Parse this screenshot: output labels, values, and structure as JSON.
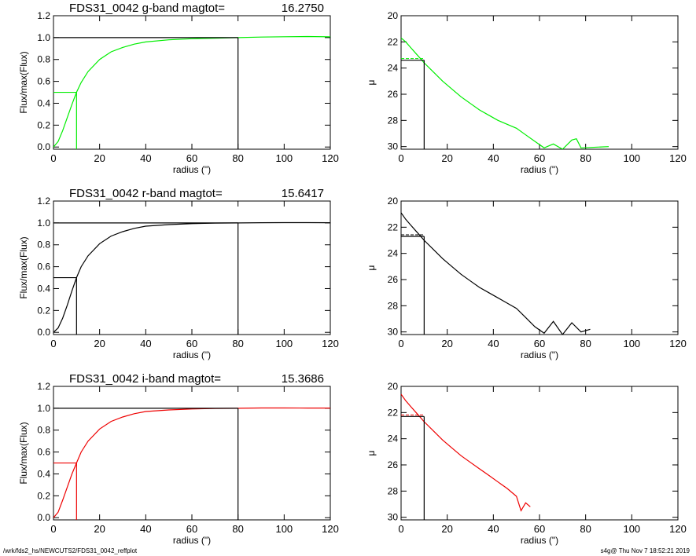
{
  "footer": {
    "path": "/wrk/fds2_hs/NEWCUTS2/FDS31_0042_reffplot",
    "stamp": "s4g@  Thu Nov  7 18:52:21 2019"
  },
  "chart_data": [
    {
      "type": "line",
      "panel": "g-growth",
      "color": "#00ee00",
      "title_name": "FDS31_0042 g-band  magtot=",
      "title_value": "16.2750",
      "xlabel": "radius (\")",
      "ylabel": "Flux/max(Flux)",
      "xlim": [
        0,
        120
      ],
      "ylim": [
        -0.02,
        1.2
      ],
      "xticks": [
        0,
        20,
        40,
        60,
        80,
        100,
        120
      ],
      "yticks": [
        0.0,
        0.2,
        0.4,
        0.6,
        0.8,
        1.0,
        1.2
      ],
      "ytick_labels": [
        "0.0",
        "0.2",
        "0.4",
        "0.6",
        "0.8",
        "1.0",
        "1.2"
      ],
      "x": [
        0,
        2,
        4,
        6,
        8,
        10,
        12,
        15,
        20,
        25,
        30,
        35,
        40,
        50,
        60,
        70,
        80,
        90,
        100,
        110,
        120
      ],
      "y": [
        0,
        0.05,
        0.15,
        0.27,
        0.39,
        0.5,
        0.59,
        0.69,
        0.8,
        0.87,
        0.91,
        0.94,
        0.96,
        0.98,
        0.99,
        0.995,
        1.0,
        1.005,
        1.008,
        1.01,
        1.007
      ],
      "reference_lines": {
        "r_half": 10,
        "half_level": 0.5,
        "r_total": 80,
        "total_level": 1.0
      }
    },
    {
      "type": "line",
      "panel": "g-profile",
      "color": "#00ee00",
      "xlabel": "radius (\")",
      "ylabel": "μ",
      "xlim": [
        0,
        120
      ],
      "ylim": [
        30.2,
        20
      ],
      "xticks": [
        0,
        20,
        40,
        60,
        80,
        100,
        120
      ],
      "yticks": [
        20,
        22,
        24,
        26,
        28,
        30
      ],
      "x": [
        0,
        2,
        4,
        6,
        8,
        10,
        14,
        18,
        22,
        26,
        30,
        34,
        38,
        42,
        46,
        50,
        54,
        58,
        62,
        66,
        70,
        74,
        76,
        78,
        90
      ],
      "y": [
        21.7,
        22,
        22.4,
        22.8,
        23.2,
        23.6,
        24.3,
        25,
        25.6,
        26.2,
        26.7,
        27.2,
        27.6,
        28,
        28.3,
        28.6,
        29.1,
        29.6,
        30.1,
        29.8,
        30.2,
        29.5,
        29.4,
        30.1,
        30.0
      ],
      "reference_lines": {
        "r_half": 10,
        "mu_half": 23.4
      }
    },
    {
      "type": "line",
      "panel": "r-growth",
      "color": "#000000",
      "title_name": "FDS31_0042 r-band  magtot=",
      "title_value": "15.6417",
      "xlabel": "radius (\")",
      "ylabel": "Flux/max(Flux)",
      "xlim": [
        0,
        120
      ],
      "ylim": [
        -0.02,
        1.2
      ],
      "xticks": [
        0,
        20,
        40,
        60,
        80,
        100,
        120
      ],
      "yticks": [
        0.0,
        0.2,
        0.4,
        0.6,
        0.8,
        1.0,
        1.2
      ],
      "ytick_labels": [
        "0.0",
        "0.2",
        "0.4",
        "0.6",
        "0.8",
        "1.0",
        "1.2"
      ],
      "x": [
        0,
        2,
        4,
        6,
        8,
        10,
        12,
        15,
        20,
        25,
        30,
        35,
        40,
        50,
        60,
        70,
        80,
        90,
        100,
        110,
        120
      ],
      "y": [
        0,
        0.04,
        0.13,
        0.25,
        0.38,
        0.5,
        0.6,
        0.7,
        0.81,
        0.88,
        0.92,
        0.95,
        0.97,
        0.985,
        0.993,
        0.998,
        1.0,
        1.002,
        1.003,
        1.003,
        1.002
      ],
      "reference_lines": {
        "r_half": 10,
        "half_level": 0.5,
        "r_total": 80,
        "total_level": 1.0
      }
    },
    {
      "type": "line",
      "panel": "r-profile",
      "color": "#000000",
      "xlabel": "radius (\")",
      "ylabel": "μ",
      "xlim": [
        0,
        120
      ],
      "ylim": [
        30.2,
        20
      ],
      "xticks": [
        0,
        20,
        40,
        60,
        80,
        100,
        120
      ],
      "yticks": [
        20,
        22,
        24,
        26,
        28,
        30
      ],
      "x": [
        0,
        2,
        4,
        6,
        8,
        10,
        14,
        18,
        22,
        26,
        30,
        34,
        38,
        42,
        46,
        50,
        54,
        58,
        62,
        66,
        70,
        74,
        78,
        82
      ],
      "y": [
        20.9,
        21.4,
        21.8,
        22.2,
        22.6,
        23,
        23.7,
        24.4,
        25,
        25.6,
        26.1,
        26.6,
        27,
        27.4,
        27.8,
        28.2,
        28.9,
        29.6,
        30.1,
        29.2,
        30.2,
        29.3,
        30.0,
        29.8
      ],
      "reference_lines": {
        "r_half": 10,
        "mu_half": 22.7
      }
    },
    {
      "type": "line",
      "panel": "i-growth",
      "color": "#ee0000",
      "title_name": "FDS31_0042 i-band  magtot=",
      "title_value": "15.3686",
      "xlabel": "radius (\")",
      "ylabel": "Flux/max(Flux)",
      "xlim": [
        0,
        120
      ],
      "ylim": [
        -0.02,
        1.2
      ],
      "xticks": [
        0,
        20,
        40,
        60,
        80,
        100,
        120
      ],
      "yticks": [
        0.0,
        0.2,
        0.4,
        0.6,
        0.8,
        1.0,
        1.2
      ],
      "ytick_labels": [
        "0.0",
        "0.2",
        "0.4",
        "0.6",
        "0.8",
        "1.0",
        "1.2"
      ],
      "x": [
        0,
        2,
        4,
        6,
        8,
        10,
        12,
        15,
        20,
        25,
        30,
        35,
        40,
        50,
        60,
        70,
        80,
        90,
        100,
        110,
        120
      ],
      "y": [
        0,
        0.05,
        0.16,
        0.28,
        0.4,
        0.5,
        0.6,
        0.7,
        0.81,
        0.88,
        0.92,
        0.95,
        0.97,
        0.985,
        0.993,
        0.998,
        1.0,
        1.003,
        1.003,
        1.002,
        1.002
      ],
      "reference_lines": {
        "r_half": 10,
        "half_level": 0.5,
        "r_total": 80,
        "total_level": 1.0
      }
    },
    {
      "type": "line",
      "panel": "i-profile",
      "color": "#ee0000",
      "xlabel": "radius (\")",
      "ylabel": "μ",
      "xlim": [
        0,
        120
      ],
      "ylim": [
        30.2,
        20
      ],
      "xticks": [
        0,
        20,
        40,
        60,
        80,
        100,
        120
      ],
      "yticks": [
        20,
        22,
        24,
        26,
        28,
        30
      ],
      "x": [
        0,
        2,
        4,
        6,
        8,
        10,
        14,
        18,
        22,
        26,
        30,
        34,
        38,
        42,
        46,
        50,
        52,
        54,
        56
      ],
      "y": [
        20.6,
        21.1,
        21.5,
        21.9,
        22.3,
        22.7,
        23.4,
        24.1,
        24.7,
        25.3,
        25.8,
        26.3,
        26.8,
        27.3,
        27.8,
        28.4,
        29.5,
        28.9,
        29.2
      ],
      "reference_lines": {
        "r_half": 10,
        "mu_half": 22.3
      }
    }
  ]
}
